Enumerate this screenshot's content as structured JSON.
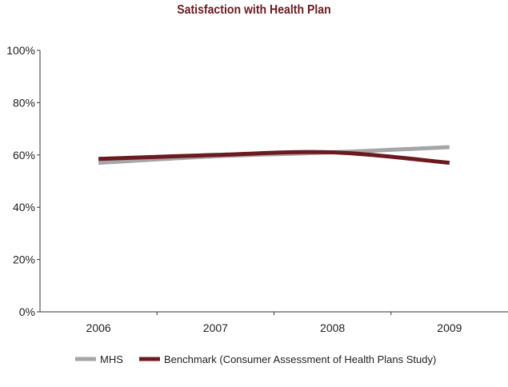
{
  "chart_data": {
    "type": "line",
    "title": "Satisfaction with Health Plan",
    "categories": [
      "2006",
      "2007",
      "2008",
      "2009"
    ],
    "ylim": [
      0,
      100
    ],
    "yticks": [
      "0%",
      "20%",
      "40%",
      "60%",
      "80%",
      "100%"
    ],
    "grid": false,
    "legend_position": "bottom",
    "series": [
      {
        "name": "MHS",
        "values": [
          57,
          59.5,
          61,
          63
        ],
        "color": "#a6a6a8"
      },
      {
        "name": "Benchmark (Consumer Assessment of Health Plans Study)",
        "values": [
          58.5,
          60,
          61,
          57
        ],
        "color": "#6b1a1f"
      }
    ]
  }
}
